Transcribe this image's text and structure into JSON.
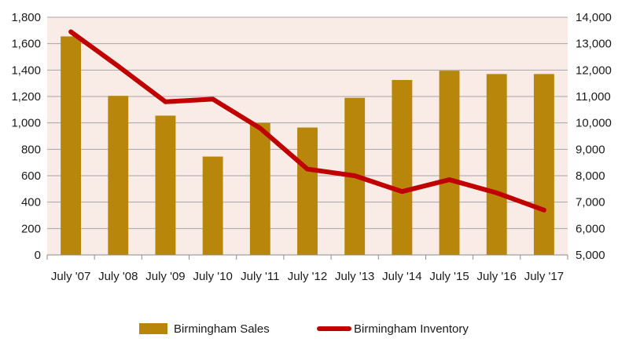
{
  "chart_data": {
    "type": "bar",
    "categories": [
      "July '07",
      "July '08",
      "July '09",
      "July '10",
      "July '11",
      "July '12",
      "July '13",
      "July '14",
      "July '15",
      "July '16",
      "July '17"
    ],
    "series": [
      {
        "name": "Birmingham Sales",
        "type": "bar",
        "axis": "left",
        "color": "#b8860b",
        "values": [
          1655,
          1205,
          1055,
          745,
          1000,
          965,
          1190,
          1325,
          1395,
          1370,
          1370
        ]
      },
      {
        "name": "Birmingham Inventory",
        "type": "line",
        "axis": "right",
        "color": "#c00000",
        "values": [
          13450,
          12150,
          10800,
          10900,
          9800,
          8250,
          8000,
          7400,
          7850,
          7350,
          6700
        ]
      }
    ],
    "y_left": {
      "ylim": [
        0,
        1800
      ],
      "ticks": [
        0,
        200,
        400,
        600,
        800,
        1000,
        1200,
        1400,
        1600,
        1800
      ],
      "tick_labels": [
        "0",
        "200",
        "400",
        "600",
        "800",
        "1,000",
        "1,200",
        "1,400",
        "1,600",
        "1,800"
      ]
    },
    "y_right": {
      "ylim": [
        5000,
        14000
      ],
      "ticks": [
        5000,
        6000,
        7000,
        8000,
        9000,
        10000,
        11000,
        12000,
        13000,
        14000
      ],
      "tick_labels": [
        "5,000",
        "6,000",
        "7,000",
        "8,000",
        "9,000",
        "10,000",
        "11,000",
        "12,000",
        "13,000",
        "14,000"
      ]
    },
    "grid": true,
    "plot_background": "#f9ebe6",
    "legend": {
      "placement": "bottom",
      "entries": [
        "Birmingham Sales",
        "Birmingham Inventory"
      ]
    }
  }
}
